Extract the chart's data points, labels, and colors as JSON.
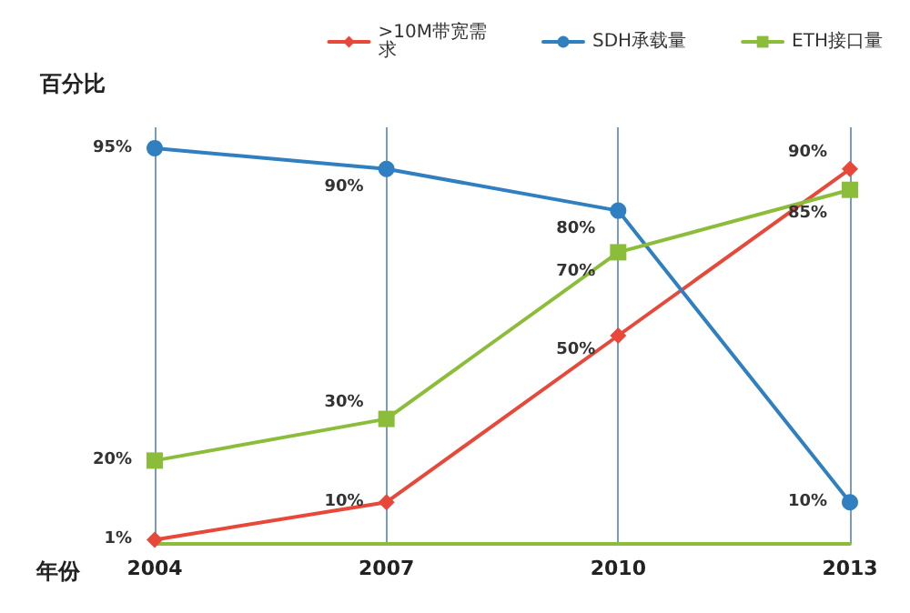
{
  "chart_data": {
    "type": "line",
    "xlabel": "年份",
    "ylabel": "百分比",
    "categories": [
      "2004",
      "2007",
      "2010",
      "2013"
    ],
    "series": [
      {
        "name": ">10M带宽需求",
        "color": "#e8483a",
        "marker": "diamond",
        "values": [
          1,
          10,
          50,
          90
        ],
        "value_labels": [
          "1%",
          "10%",
          "50%",
          "90%"
        ]
      },
      {
        "name": "SDH承载量",
        "color": "#2f7fc1",
        "marker": "circle",
        "values": [
          95,
          90,
          80,
          10
        ],
        "value_labels": [
          "95%",
          "90%",
          "80%",
          "10%"
        ]
      },
      {
        "name": "ETH接口量",
        "color": "#8cbd3a",
        "marker": "square",
        "values": [
          20,
          30,
          70,
          85
        ],
        "value_labels": [
          "20%",
          "30%",
          "70%",
          "85%"
        ]
      }
    ],
    "grid": "x",
    "legend": "top right",
    "line_style": "solid"
  }
}
